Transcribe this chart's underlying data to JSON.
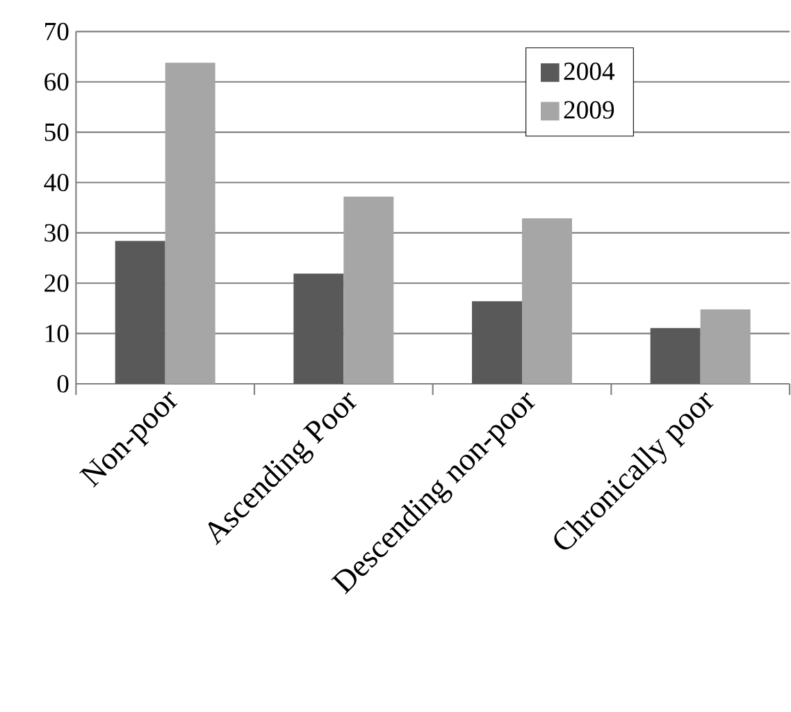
{
  "chart_data": {
    "type": "bar",
    "categories": [
      "Non-poor",
      "Ascending Poor",
      "Descending non-poor",
      "Chronically poor"
    ],
    "series": [
      {
        "name": "2004",
        "color": "#595959",
        "values": [
          28.4,
          21.9,
          16.4,
          11.1
        ]
      },
      {
        "name": "2009",
        "color": "#a6a6a6",
        "values": [
          63.8,
          37.2,
          32.9,
          14.8
        ]
      }
    ],
    "ylim": [
      0,
      70
    ],
    "yticks": [
      0,
      10,
      20,
      30,
      40,
      50,
      60,
      70
    ],
    "grid": "y",
    "legend": "top right"
  }
}
